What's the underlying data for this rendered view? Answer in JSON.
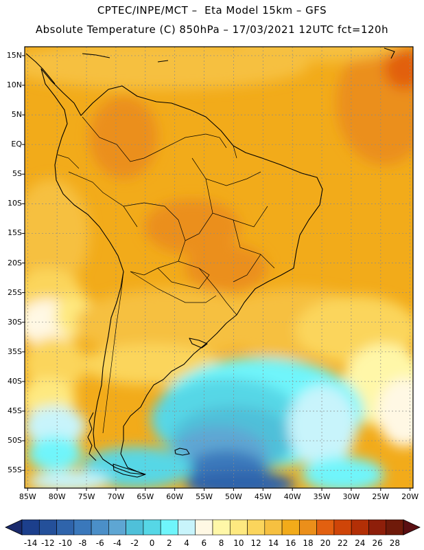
{
  "header": {
    "line1": "CPTEC/INPE/MCT –  Eta Model 15km – GFS",
    "line2": "Absolute Temperature (C) 850hPa – 17/03/2021 12UTC fct=120h"
  },
  "map": {
    "lat_labels": [
      "15N",
      "10N",
      "5N",
      "EQ",
      "5S",
      "10S",
      "15S",
      "20S",
      "25S",
      "30S",
      "35S",
      "40S",
      "45S",
      "50S",
      "55S"
    ],
    "lat_values": [
      15,
      10,
      5,
      0,
      -5,
      -10,
      -15,
      -20,
      -25,
      -30,
      -35,
      -40,
      -45,
      -50,
      -55
    ],
    "lon_labels": [
      "85W",
      "80W",
      "75W",
      "70W",
      "65W",
      "60W",
      "55W",
      "50W",
      "45W",
      "40W",
      "35W",
      "30W",
      "25W",
      "20W"
    ],
    "lon_values": [
      -85,
      -80,
      -75,
      -70,
      -65,
      -60,
      -55,
      -50,
      -45,
      -40,
      -35,
      -30,
      -25,
      -20
    ],
    "extent": {
      "lon_min": -85.5,
      "lon_max": -19.5,
      "lat_min": -58,
      "lat_max": 16.5
    }
  },
  "colorbar": {
    "labels": [
      "-14",
      "-12",
      "-10",
      "-8",
      "-6",
      "-4",
      "-2",
      "0",
      "2",
      "4",
      "6",
      "8",
      "10",
      "12",
      "14",
      "16",
      "18",
      "20",
      "22",
      "24",
      "26",
      "28"
    ],
    "colors": [
      "#1c3f8c",
      "#24509a",
      "#2f64ab",
      "#3a78bb",
      "#4b8fc8",
      "#5ea6d3",
      "#4fc0d9",
      "#56d7e6",
      "#6ff5fb",
      "#c8f4fb",
      "#fff8e4",
      "#fff7a8",
      "#fee980",
      "#fbd55c",
      "#f6c040",
      "#f2ab1a",
      "#eb8f1a",
      "#e26010",
      "#cf4508",
      "#b32f06",
      "#8e1f0a",
      "#6f1a0a"
    ],
    "arrow_left": "#1a2a6c",
    "arrow_right": "#5a0f12"
  }
}
